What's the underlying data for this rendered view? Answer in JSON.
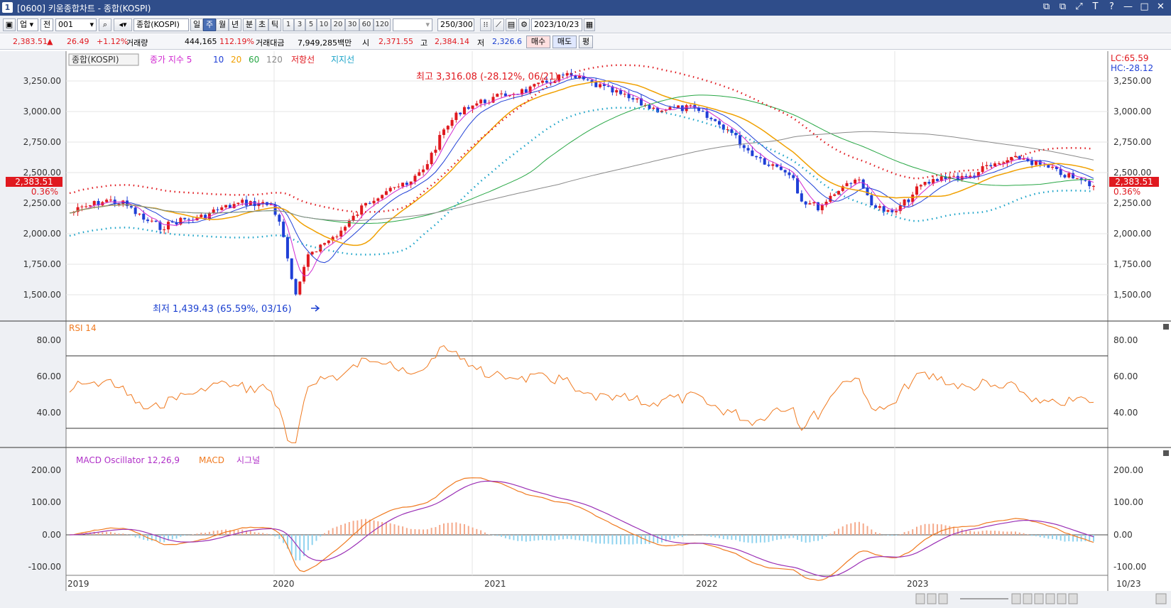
{
  "window": {
    "number": "1",
    "title": "[0600] 키움종합차트 - 종합(KOSPI)",
    "controls": [
      "⧉",
      "⧉",
      "⤢",
      "T",
      "?",
      "—",
      "□",
      "✕"
    ]
  },
  "toolbar": {
    "market": "업",
    "period_select": "전",
    "code": "001",
    "name": "종합(KOSPI)",
    "periods": [
      "일",
      "주",
      "월",
      "년",
      "분",
      "초",
      "틱"
    ],
    "selected_period": "주",
    "intervals": [
      "1",
      "3",
      "5",
      "10",
      "20",
      "30",
      "60",
      "120"
    ],
    "count": "250/300",
    "date": "2023/10/23"
  },
  "quote": {
    "price": "2,383.51",
    "change_arrow": "▲",
    "change": "26.49",
    "change_pct": "+1.12%",
    "volume_label": "거래량",
    "volume": "444,165",
    "volume_pct": "112.19%",
    "amount_label": "거래대금",
    "amount": "7,949,285백만",
    "open_label": "시",
    "open": "2,371.55",
    "high_label": "고",
    "high": "2,384.14",
    "low_label": "저",
    "low": "2,326.6",
    "buy_label": "매수",
    "sell_label": "매도",
    "avg_label": "평"
  },
  "price_panel": {
    "legend_name": "종합(KOSPI)",
    "legend_items": [
      {
        "text": "종가 지수 5",
        "color": "#d12ad1"
      },
      {
        "text": "10",
        "color": "#1f3fd6"
      },
      {
        "text": "20",
        "color": "#f0a000"
      },
      {
        "text": "60",
        "color": "#28a745"
      },
      {
        "text": "120",
        "color": "#8a8a8a"
      },
      {
        "text": "저항선",
        "color": "#e0191f"
      },
      {
        "text": "지지선",
        "color": "#1aa3c8"
      }
    ],
    "lc_label": "LC:65.59",
    "hc_label": "HC:-28.12",
    "y_ticks": [
      "3,250.00",
      "3,000.00",
      "2,750.00",
      "2,500.00",
      "2,250.00",
      "2,000.00",
      "1,750.00",
      "1,500.00"
    ],
    "current_price_tag": "2,383.51",
    "current_pct_tag": "0.36%",
    "max_annotation": "최고 3,316.08 (-28.12%, 06/21)",
    "min_annotation": "최저 1,439.43 (65.59%, 03/16)"
  },
  "rsi_panel": {
    "legend": "RSI 14",
    "y_ticks": [
      "80.00",
      "60.00",
      "40.00"
    ]
  },
  "macd_panel": {
    "legend_items": [
      {
        "text": "MACD Oscillator 12,26,9",
        "color": "#b030c8"
      },
      {
        "text": "MACD",
        "color": "#f07a20"
      },
      {
        "text": "시그널",
        "color": "#b030c8"
      }
    ],
    "y_ticks": [
      "200.00",
      "100.00",
      "0.00",
      "-100.00"
    ]
  },
  "x_axis": {
    "labels": [
      "2019",
      "2020",
      "2021",
      "2022",
      "2023"
    ],
    "last_label": "10/23"
  },
  "colors": {
    "up": "#e0191f",
    "down": "#1f3fd6",
    "resistance": "#e0191f",
    "support": "#1aa3c8"
  }
}
